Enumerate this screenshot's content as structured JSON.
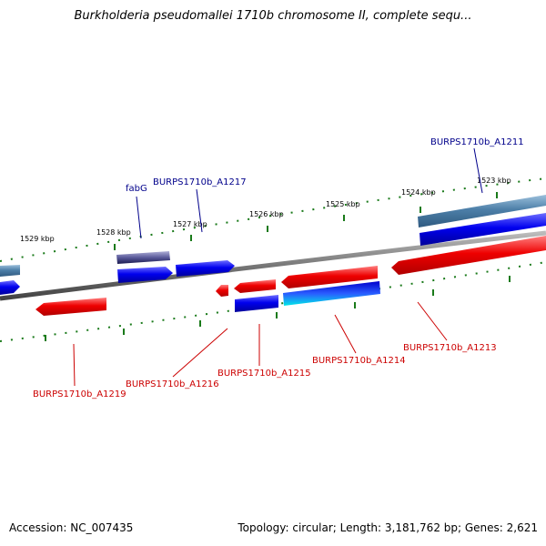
{
  "title": "Burkholderia pseudomallei 1710b chromosome II, complete sequ...",
  "footer": {
    "accession": "Accession: NC_007435",
    "stats": "Topology: circular; Length: 3,181,762 bp; Genes: 2,621"
  },
  "scale_ticks": [
    "1523 kbp",
    "1524 kbp",
    "1525 kbp",
    "1526 kbp",
    "1527 kbp",
    "1528 kbp",
    "1529 kbp"
  ],
  "genes": [
    {
      "id": "fabG",
      "label": "fabG",
      "strand": "+",
      "color": "#00008b"
    },
    {
      "id": "BURPS1710b_A1211",
      "label": "BURPS1710b_A1211",
      "strand": "+",
      "color": "#00008b"
    },
    {
      "id": "BURPS1710b_A1217",
      "label": "BURPS1710b_A1217",
      "strand": "+",
      "color": "#00008b"
    },
    {
      "id": "BURPS1710b_A1213",
      "label": "BURPS1710b_A1213",
      "strand": "-",
      "color": "#cc0000"
    },
    {
      "id": "BURPS1710b_A1214",
      "label": "BURPS1710b_A1214",
      "strand": "-",
      "color": "#cc0000"
    },
    {
      "id": "BURPS1710b_A1215",
      "label": "BURPS1710b_A1215",
      "strand": "-",
      "color": "#cc0000"
    },
    {
      "id": "BURPS1710b_A1216",
      "label": "BURPS1710b_A1216",
      "strand": "-",
      "color": "#cc0000"
    },
    {
      "id": "BURPS1710b_A1219",
      "label": "BURPS1710b_A1219",
      "strand": "-",
      "color": "#cc0000"
    }
  ],
  "colors": {
    "forward_cds": "#0000ee",
    "reverse_cds": "#ee0000",
    "forward_label": "#00008b",
    "reverse_label": "#cc0000",
    "backbone": "#777777",
    "tick": "#1a7a1a",
    "steelblue_feature": "#4d7fa8",
    "cyan_feature": "#00e0e0"
  }
}
